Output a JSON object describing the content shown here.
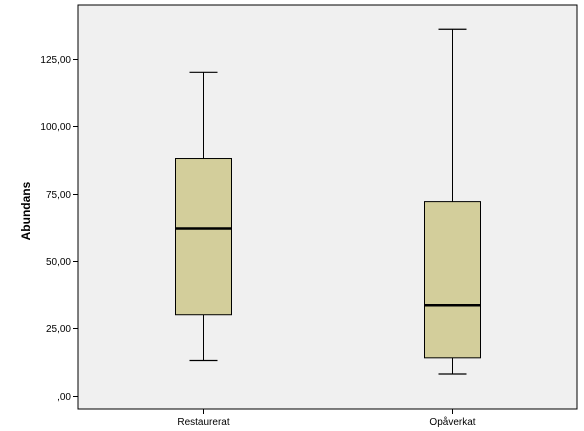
{
  "chart_data": {
    "type": "boxplot",
    "title": "",
    "xlabel": "",
    "ylabel": "Abundans",
    "ylim": [
      -5,
      145
    ],
    "y_ticks": [
      0,
      25,
      50,
      75,
      100,
      125
    ],
    "y_tick_labels": [
      ",00",
      "25,00",
      "50,00",
      "75,00",
      "100,00",
      "125,00"
    ],
    "grid": false,
    "colors": {
      "plot_background": "#f0f0f0",
      "box_fill": "#d3ce9b",
      "stroke": "#000000"
    },
    "categories": [
      "Restaurerat",
      "Opåverkat"
    ],
    "boxes": [
      {
        "category": "Restaurerat",
        "min": 13,
        "q1": 30,
        "median": 62,
        "q3": 88,
        "max": 120
      },
      {
        "category": "Opåverkat",
        "min": 8,
        "q1": 14,
        "median": 33.5,
        "q3": 72,
        "max": 136
      }
    ]
  }
}
